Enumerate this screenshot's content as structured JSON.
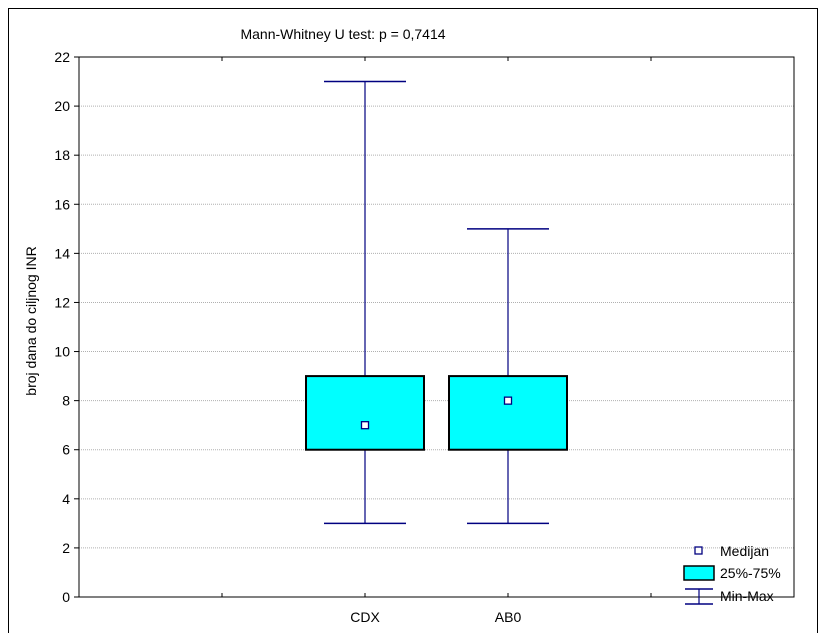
{
  "chart_data": {
    "type": "boxplot",
    "title": "Mann-Whitney U test: p = 0,7414",
    "xlabel": "",
    "ylabel": "broj dana do ciljnog INR",
    "categories": [
      "CDX",
      "AB0"
    ],
    "ylim": [
      0,
      22
    ],
    "yticks": [
      "0",
      "2",
      "4",
      "6",
      "8",
      "10",
      "12",
      "14",
      "16",
      "18",
      "20",
      "22"
    ],
    "grid": true,
    "legend_position": "bottom-right",
    "series": [
      {
        "category": "CDX",
        "min": 3,
        "q1": 6,
        "median": 7,
        "q3": 9,
        "max": 21
      },
      {
        "category": "AB0",
        "min": 3,
        "q1": 6,
        "median": 8,
        "q3": 9,
        "max": 15
      }
    ],
    "legend": {
      "median_label": "Medijan",
      "box_label": "25%-75%",
      "range_label": "Min-Max"
    },
    "colors": {
      "box_fill": "#00ffff",
      "box_stroke": "#000000",
      "whisker": "#000080",
      "grid": "#b0b0b0"
    }
  }
}
